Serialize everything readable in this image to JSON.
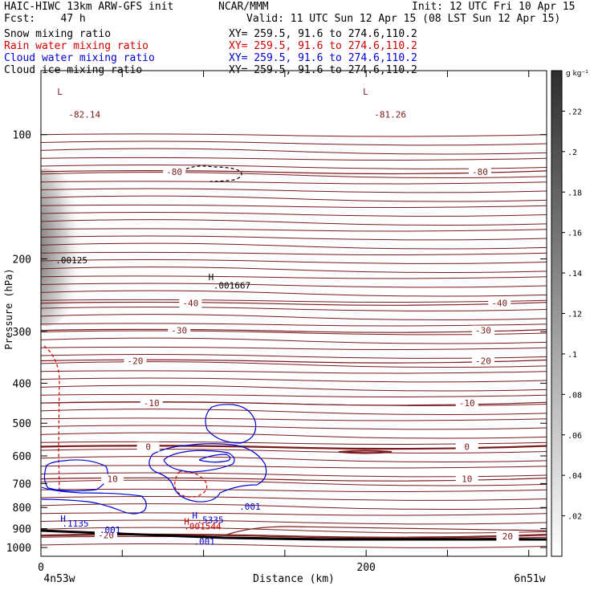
{
  "header": {
    "model": "HAIC-HIWC 13km ARW-GFS init",
    "org": "NCAR/MMM",
    "init": "Init: 12 UTC Fri 10 Apr 15",
    "fcst": "Fcst:    47 h",
    "valid": "Valid: 11 UTC Sun 12 Apr 15 (08 LST Sun 12 Apr 15)",
    "xy": "XY= 259.5, 91.6 to 274.6,110.2"
  },
  "colors": {
    "snow": "#000000",
    "rain": "#d00000",
    "cloud": "#0000d0",
    "ice": "#000000",
    "temperature": "#7a1a1a",
    "terrain": "#000000"
  },
  "chart_data": {
    "type": "cross-section",
    "fields": [
      {
        "name": "Snow mixing ratio",
        "color": "#000000"
      },
      {
        "name": "Rain water mixing ratio",
        "color": "#d00000"
      },
      {
        "name": "Cloud water mixing ratio",
        "color": "#0000d0"
      },
      {
        "name": "Cloud ice mixing ratio",
        "color": "#000000"
      }
    ],
    "xlabel": "Distance (km)",
    "ylabel": "Pressure (hPa)",
    "xlim": [
      0,
      311
    ],
    "ylim": [
      1050,
      70
    ],
    "yscale": "log",
    "x_ticks": [
      0,
      200
    ],
    "y_ticks": [
      100,
      200,
      300,
      400,
      500,
      600,
      700,
      800,
      900,
      1000
    ],
    "start_label": "4n53w",
    "end_label": "6n51w",
    "colorbar": {
      "unit": "g kg⁻¹",
      "ticks": [
        ".02",
        ".04",
        ".06",
        ".08",
        ".1",
        ".12",
        ".14",
        ".16",
        ".18",
        ".2",
        ".22"
      ],
      "min": 0,
      "max": 0.24
    },
    "temperature_contours": [
      {
        "label": "-80",
        "p": 123,
        "labels_at": [
          82,
          270
        ]
      },
      {
        "label": "-40",
        "p": 256,
        "labels_at": [
          92,
          282
        ]
      },
      {
        "label": "-30",
        "p": 298,
        "labels_at": [
          85,
          272
        ]
      },
      {
        "label": "-20",
        "p": 353,
        "labels_at": [
          58,
          272
        ]
      },
      {
        "label": "-10",
        "p": 447,
        "labels_at": [
          68,
          262
        ]
      },
      {
        "label": "0",
        "p": 570,
        "labels_at": [
          66,
          262
        ]
      },
      {
        "label": "10",
        "p": 682,
        "labels_at": [
          44,
          262
        ]
      },
      {
        "label": "-20",
        "p": 933,
        "labels_at": [
          40
        ]
      },
      {
        "label": "20",
        "p": 938,
        "labels_at": [
          287
        ]
      }
    ],
    "annotations": [
      {
        "text": "L",
        "x": 10,
        "p": 80,
        "color": "#7a1a1a"
      },
      {
        "text": "-82.14",
        "x": 17,
        "p": 91,
        "color": "#7a1a1a"
      },
      {
        "text": "L",
        "x": 198,
        "p": 80,
        "color": "#7a1a1a"
      },
      {
        "text": "-81.26",
        "x": 205,
        "p": 91,
        "color": "#7a1a1a"
      },
      {
        "text": ".00125",
        "x": 9,
        "p": 205,
        "color": "#000000"
      },
      {
        "text": "H",
        "x": 103,
        "p": 225,
        "color": "#000000"
      },
      {
        "text": ".001667",
        "x": 106,
        "p": 236,
        "color": "#000000"
      },
      {
        "text": ".001",
        "x": 122,
        "p": 810,
        "color": "#0000d0"
      },
      {
        "text": "H",
        "x": 12,
        "p": 866,
        "color": "#0000d0"
      },
      {
        "text": ".1135",
        "x": 13,
        "p": 890,
        "color": "#0000d0"
      },
      {
        "text": "H",
        "x": 93,
        "p": 850,
        "color": "#0000d0"
      },
      {
        "text": ".5335",
        "x": 96,
        "p": 872,
        "color": "#0000d0"
      },
      {
        "text": "H",
        "x": 88,
        "p": 880,
        "color": "#d00000"
      },
      {
        "text": ".001544",
        "x": 88,
        "p": 903,
        "color": "#d00000"
      },
      {
        "text": ".001",
        "x": 36,
        "p": 922,
        "color": "#0000d0"
      },
      {
        "text": ".001",
        "x": 94,
        "p": 985,
        "color": "#0000d0"
      }
    ]
  }
}
